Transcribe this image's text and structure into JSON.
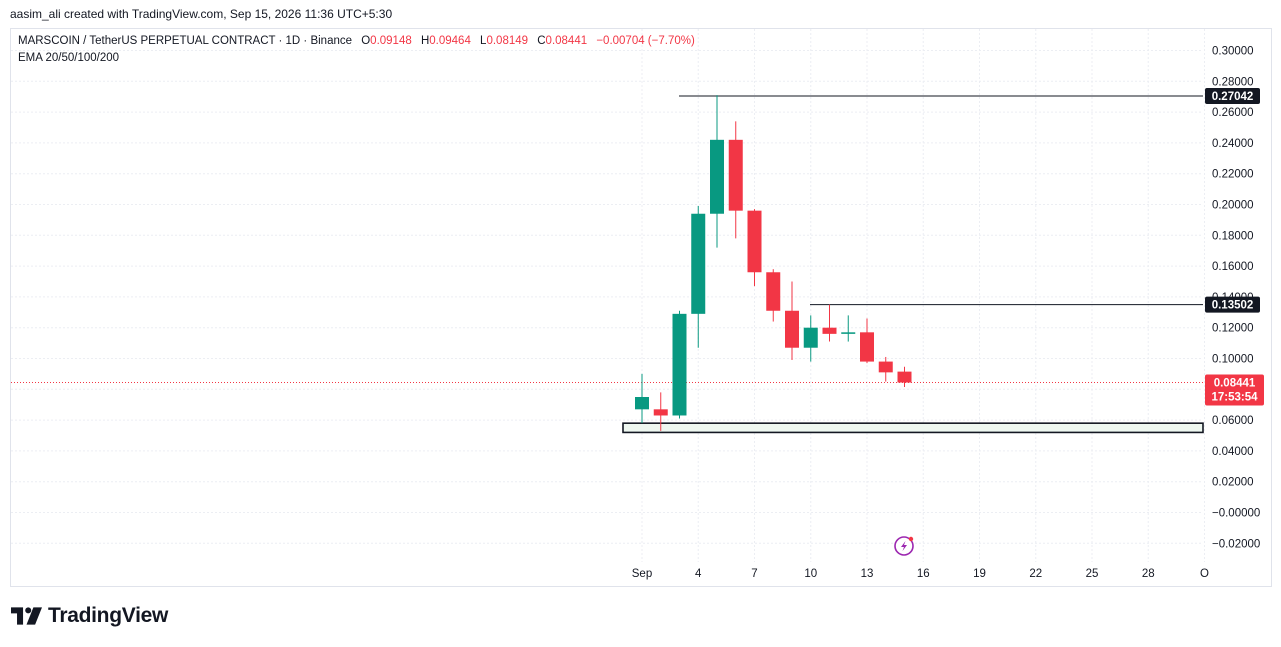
{
  "attribution": "aasim_ali created with TradingView.com, Sep 15, 2026 11:36 UTC+5:30",
  "legend": {
    "symbol": "MARSCOIN / TetherUS PERPETUAL CONTRACT · 1D · Binance",
    "open_key": "O",
    "open": "0.09148",
    "high_key": "H",
    "high": "0.09464",
    "low_key": "L",
    "low": "0.08149",
    "close_key": "C",
    "close": "0.08441",
    "change": "−0.00704 (−7.70%)",
    "indicator": "EMA 20/50/100/200"
  },
  "brand": {
    "name": "TradingView",
    "icon": "tradingview-logo-icon"
  },
  "colors": {
    "up": "#089981",
    "down": "#f23645",
    "grid": "#f0f3fa",
    "badge": "#131722"
  },
  "chart_data": {
    "type": "candlestick",
    "y_ticks": [
      "0.30000",
      "0.28000",
      "0.26000",
      "0.24000",
      "0.22000",
      "0.20000",
      "0.18000",
      "0.16000",
      "0.14000",
      "0.12000",
      "0.10000",
      "0.08000",
      "0.06000",
      "0.04000",
      "0.02000",
      "−0.00000",
      "−0.02000"
    ],
    "x_ticks": [
      "Sep",
      "4",
      "7",
      "10",
      "13",
      "16",
      "19",
      "22",
      "25",
      "28",
      "O"
    ],
    "candles": [
      {
        "o": 0.067,
        "h": 0.09,
        "l": 0.058,
        "c": 0.075
      },
      {
        "o": 0.067,
        "h": 0.078,
        "l": 0.053,
        "c": 0.063
      },
      {
        "o": 0.063,
        "h": 0.131,
        "l": 0.061,
        "c": 0.129
      },
      {
        "o": 0.129,
        "h": 0.199,
        "l": 0.107,
        "c": 0.194
      },
      {
        "o": 0.194,
        "h": 0.271,
        "l": 0.172,
        "c": 0.242
      },
      {
        "o": 0.242,
        "h": 0.254,
        "l": 0.178,
        "c": 0.196
      },
      {
        "o": 0.196,
        "h": 0.197,
        "l": 0.147,
        "c": 0.156
      },
      {
        "o": 0.156,
        "h": 0.158,
        "l": 0.124,
        "c": 0.131
      },
      {
        "o": 0.131,
        "h": 0.15,
        "l": 0.099,
        "c": 0.107
      },
      {
        "o": 0.107,
        "h": 0.128,
        "l": 0.098,
        "c": 0.12
      },
      {
        "o": 0.12,
        "h": 0.135,
        "l": 0.111,
        "c": 0.116
      },
      {
        "o": 0.116,
        "h": 0.128,
        "l": 0.111,
        "c": 0.117
      },
      {
        "o": 0.117,
        "h": 0.126,
        "l": 0.097,
        "c": 0.098
      },
      {
        "o": 0.098,
        "h": 0.101,
        "l": 0.085,
        "c": 0.091
      },
      {
        "o": 0.09148,
        "h": 0.09464,
        "l": 0.08149,
        "c": 0.08441
      }
    ],
    "levels": [
      {
        "value": 0.27042,
        "label": "0.27042"
      },
      {
        "value": 0.13502,
        "label": "0.13502"
      }
    ],
    "support_zone": [
      0.052,
      0.058
    ],
    "last_price": {
      "value": 0.08441,
      "label": "0.08441",
      "countdown": "17:53:54"
    }
  }
}
